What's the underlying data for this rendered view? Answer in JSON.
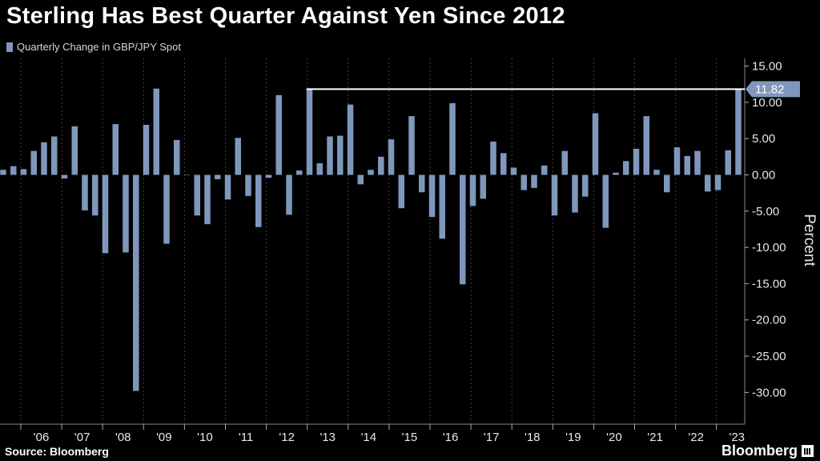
{
  "title": "Sterling Has Best Quarter Against Yen Since 2012",
  "legend": {
    "label": "Quarterly Change in GBP/JPY Spot"
  },
  "source": "Source: Bloomberg",
  "brand": "Bloomberg",
  "colors": {
    "bar": "#7f97bd",
    "background": "#000000",
    "grid": "#444444",
    "highlight_line": "#ffffff"
  },
  "chart_data": {
    "type": "bar",
    "title": "Sterling Has Best Quarter Against Yen Since 2012",
    "series": [
      {
        "name": "Quarterly Change in GBP/JPY Spot",
        "values": [
          0.7,
          1.2,
          0.8,
          3.3,
          4.5,
          5.3,
          -0.5,
          6.7,
          -4.9,
          -5.6,
          -10.8,
          7.0,
          -10.7,
          -29.8,
          6.9,
          11.9,
          -9.5,
          4.8,
          0,
          -5.6,
          -6.8,
          -0.6,
          -3.4,
          5.1,
          -2.9,
          -7.2,
          -0.4,
          11.0,
          -5.5,
          0.6,
          11.82,
          1.6,
          5.3,
          5.4,
          9.7,
          -1.3,
          0.7,
          2.5,
          4.9,
          -4.6,
          8.1,
          -2.4,
          -5.8,
          -8.8,
          9.9,
          -15.1,
          -4.3,
          -3.3,
          4.6,
          3.0,
          1.0,
          -2.1,
          -1.8,
          1.3,
          -5.6,
          3.3,
          -5.2,
          -3.0,
          8.5,
          -7.3,
          0.3,
          1.9,
          3.6,
          8.1,
          0.7,
          -2.4,
          3.8,
          2.6,
          3.3,
          -2.3,
          -2.1,
          3.4,
          11.82
        ]
      }
    ],
    "x_labels": [
      "'06",
      "'07",
      "'08",
      "'09",
      "'10",
      "'11",
      "'12",
      "'13",
      "'14",
      "'15",
      "'16",
      "'17",
      "'18",
      "'19",
      "'20",
      "'21",
      "'22",
      "'23"
    ],
    "y_ticks": [
      "15.00",
      "10.00",
      "5.00",
      "0.00",
      "-5.00",
      "-10.00",
      "-15.00",
      "-20.00",
      "-25.00",
      "-30.00"
    ],
    "ylabel": "Percent",
    "ylim": [
      -33.3,
      15.5
    ],
    "highlight": {
      "value": 11.82,
      "label": "11.82"
    }
  }
}
